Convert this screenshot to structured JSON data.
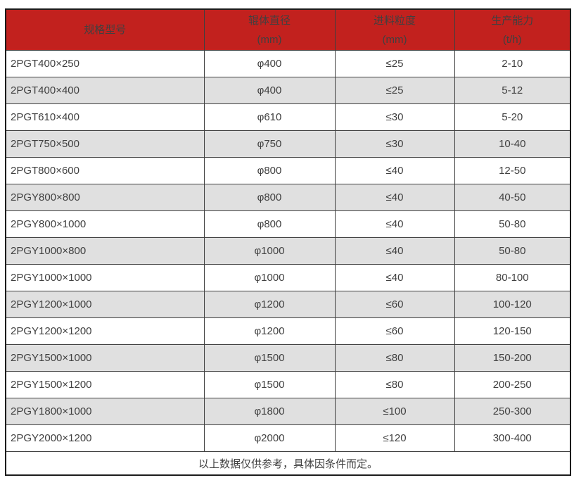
{
  "colors": {
    "header_bg": "#c2211e",
    "header_text": "#ffffff",
    "row_bg": "#ffffff",
    "row_alt_bg": "#e0e0e0",
    "body_text": "#404040",
    "border_inner": "#3f3f3f",
    "border_outer": "#1c1c1c"
  },
  "table": {
    "columns": [
      {
        "title": "规格型号",
        "unit": ""
      },
      {
        "title": "辊体直径",
        "unit": "(mm)"
      },
      {
        "title": "进料粒度",
        "unit": "(mm)"
      },
      {
        "title": "生产能力",
        "unit": "(t/h)"
      }
    ],
    "rows": [
      [
        "2PGT400×250",
        "φ400",
        "≤25",
        "2-10"
      ],
      [
        "2PGT400×400",
        "φ400",
        "≤25",
        "5-12"
      ],
      [
        "2PGT610×400",
        "φ610",
        "≤30",
        "5-20"
      ],
      [
        "2PGT750×500",
        "φ750",
        "≤30",
        "10-40"
      ],
      [
        "2PGT800×600",
        "φ800",
        "≤40",
        "12-50"
      ],
      [
        "2PGY800×800",
        "φ800",
        "≤40",
        "40-50"
      ],
      [
        "2PGY800×1000",
        "φ800",
        "≤40",
        "50-80"
      ],
      [
        "2PGY1000×800",
        "φ1000",
        "≤40",
        "50-80"
      ],
      [
        "2PGY1000×1000",
        "φ1000",
        "≤40",
        "80-100"
      ],
      [
        "2PGY1200×1000",
        "φ1200",
        "≤60",
        "100-120"
      ],
      [
        "2PGY1200×1200",
        "φ1200",
        "≤60",
        "120-150"
      ],
      [
        "2PGY1500×1000",
        "φ1500",
        "≤80",
        "150-200"
      ],
      [
        "2PGY1500×1200",
        "φ1500",
        "≤80",
        "200-250"
      ],
      [
        "2PGY1800×1000",
        "φ1800",
        "≤100",
        "250-300"
      ],
      [
        "2PGY2000×1200",
        "φ2000",
        "≤120",
        "300-400"
      ]
    ],
    "footer_note": "以上数据仅供参考，具体因条件而定。"
  }
}
